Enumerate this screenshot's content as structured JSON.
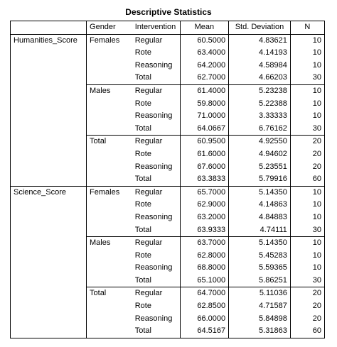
{
  "title": "Descriptive Statistics",
  "headers": {
    "factor": "",
    "gender": "Gender",
    "intervention": "Intervention",
    "mean": "Mean",
    "sd": "Std. Deviation",
    "n": "N"
  },
  "rows": [
    {
      "factor": "Humanities_Score",
      "gender": "Females",
      "intervention": "Regular",
      "mean": "60.5000",
      "sd": "4.83621",
      "n": "10"
    },
    {
      "factor": "",
      "gender": "",
      "intervention": "Rote",
      "mean": "63.4000",
      "sd": "4.14193",
      "n": "10"
    },
    {
      "factor": "",
      "gender": "",
      "intervention": "Reasoning",
      "mean": "64.2000",
      "sd": "4.58984",
      "n": "10"
    },
    {
      "factor": "",
      "gender": "",
      "intervention": "Total",
      "mean": "62.7000",
      "sd": "4.66203",
      "n": "30"
    },
    {
      "factor": "",
      "gender": "Males",
      "intervention": "Regular",
      "mean": "61.4000",
      "sd": "5.23238",
      "n": "10"
    },
    {
      "factor": "",
      "gender": "",
      "intervention": "Rote",
      "mean": "59.8000",
      "sd": "5.22388",
      "n": "10"
    },
    {
      "factor": "",
      "gender": "",
      "intervention": "Reasoning",
      "mean": "71.0000",
      "sd": "3.33333",
      "n": "10"
    },
    {
      "factor": "",
      "gender": "",
      "intervention": "Total",
      "mean": "64.0667",
      "sd": "6.76162",
      "n": "30"
    },
    {
      "factor": "",
      "gender": "Total",
      "intervention": "Regular",
      "mean": "60.9500",
      "sd": "4.92550",
      "n": "20"
    },
    {
      "factor": "",
      "gender": "",
      "intervention": "Rote",
      "mean": "61.6000",
      "sd": "4.94602",
      "n": "20"
    },
    {
      "factor": "",
      "gender": "",
      "intervention": "Reasoning",
      "mean": "67.6000",
      "sd": "5.23551",
      "n": "20"
    },
    {
      "factor": "",
      "gender": "",
      "intervention": "Total",
      "mean": "63.3833",
      "sd": "5.79916",
      "n": "60"
    },
    {
      "factor": "Science_Score",
      "gender": "Females",
      "intervention": "Regular",
      "mean": "65.7000",
      "sd": "5.14350",
      "n": "10"
    },
    {
      "factor": "",
      "gender": "",
      "intervention": "Rote",
      "mean": "62.9000",
      "sd": "4.14863",
      "n": "10"
    },
    {
      "factor": "",
      "gender": "",
      "intervention": "Reasoning",
      "mean": "63.2000",
      "sd": "4.84883",
      "n": "10"
    },
    {
      "factor": "",
      "gender": "",
      "intervention": "Total",
      "mean": "63.9333",
      "sd": "4.74111",
      "n": "30"
    },
    {
      "factor": "",
      "gender": "Males",
      "intervention": "Regular",
      "mean": "63.7000",
      "sd": "5.14350",
      "n": "10"
    },
    {
      "factor": "",
      "gender": "",
      "intervention": "Rote",
      "mean": "62.8000",
      "sd": "5.45283",
      "n": "10"
    },
    {
      "factor": "",
      "gender": "",
      "intervention": "Reasoning",
      "mean": "68.8000",
      "sd": "5.59365",
      "n": "10"
    },
    {
      "factor": "",
      "gender": "",
      "intervention": "Total",
      "mean": "65.1000",
      "sd": "5.86251",
      "n": "30"
    },
    {
      "factor": "",
      "gender": "Total",
      "intervention": "Regular",
      "mean": "64.7000",
      "sd": "5.11036",
      "n": "20"
    },
    {
      "factor": "",
      "gender": "",
      "intervention": "Rote",
      "mean": "62.8500",
      "sd": "4.71587",
      "n": "20"
    },
    {
      "factor": "",
      "gender": "",
      "intervention": "Reasoning",
      "mean": "66.0000",
      "sd": "5.84898",
      "n": "20"
    },
    {
      "factor": "",
      "gender": "",
      "intervention": "Total",
      "mean": "64.5167",
      "sd": "5.31863",
      "n": "60"
    }
  ]
}
